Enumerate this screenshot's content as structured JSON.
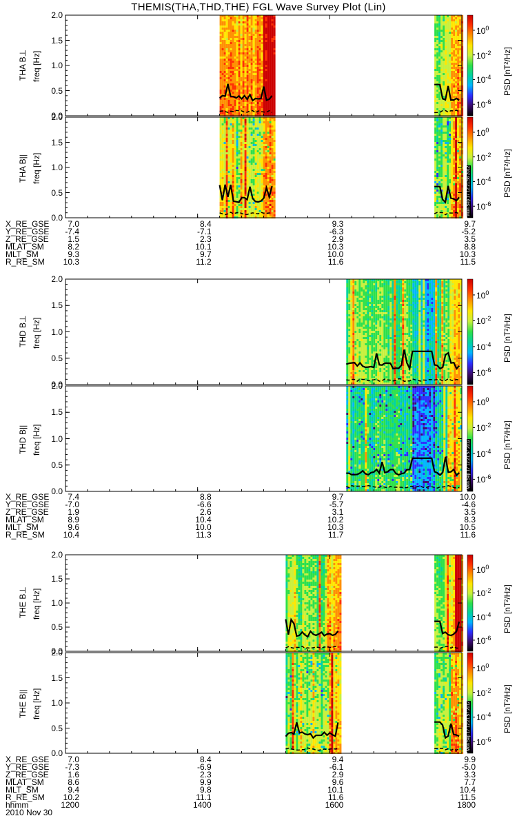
{
  "title": "THEMIS(THA,THD,THE) FGL Wave Survey Plot (Lin)",
  "freq_axis_label": "freq [Hz]",
  "freq_ticks": [
    "0.0",
    "0.5",
    "1.0",
    "1.5",
    "2.0"
  ],
  "colorbar": {
    "label": "PSD [nT²/Hz]",
    "ticks": [
      {
        "mant": "10",
        "exp": "0"
      },
      {
        "mant": "10",
        "exp": "-2"
      },
      {
        "mant": "10",
        "exp": "-4"
      },
      {
        "mant": "10",
        "exp": "-6"
      }
    ],
    "colors": [
      "#000000",
      "#3b0a6e",
      "#2c2cff",
      "#00b4ff",
      "#00d2a0",
      "#2ee04a",
      "#c8f03c",
      "#ffe600",
      "#ff9000",
      "#ff3000",
      "#cc0000"
    ]
  },
  "stamp": "Mon Sep 17 12:21:56 2012",
  "stamp2": "Mon Sep 17 12:21:57 2012",
  "time_labels": [
    "1200",
    "1400",
    "1600",
    "1800"
  ],
  "footer": {
    "hhmm": "hhmm",
    "date": "2010 Nov 30"
  },
  "chart_data": [
    {
      "type": "heatmap",
      "probe": "THA",
      "ylabel": "THA B⊥",
      "ylim": [
        0,
        2.0
      ],
      "xrange": [
        "1200",
        "1800"
      ],
      "data_intervals": [
        [
          "1420",
          "1510"
        ],
        [
          "1735",
          "1800"
        ]
      ]
    },
    {
      "type": "heatmap",
      "probe": "THA",
      "ylabel": "THA B||",
      "ylim": [
        0,
        2.0
      ],
      "xrange": [
        "1200",
        "1800"
      ],
      "data_intervals": [
        [
          "1420",
          "1510"
        ],
        [
          "1735",
          "1800"
        ]
      ]
    },
    {
      "type": "heatmap",
      "probe": "THD",
      "ylabel": "THD B⊥",
      "ylim": [
        0,
        2.0
      ],
      "xrange": [
        "1200",
        "1800"
      ],
      "data_intervals": [
        [
          "1615",
          "1800"
        ]
      ]
    },
    {
      "type": "heatmap",
      "probe": "THD",
      "ylabel": "THD B||",
      "ylim": [
        0,
        2.0
      ],
      "xrange": [
        "1200",
        "1800"
      ],
      "data_intervals": [
        [
          "1615",
          "1800"
        ]
      ]
    },
    {
      "type": "heatmap",
      "probe": "THE",
      "ylabel": "THE B⊥",
      "ylim": [
        0,
        2.0
      ],
      "xrange": [
        "1200",
        "1800"
      ],
      "data_intervals": [
        [
          "1520",
          "1610"
        ],
        [
          "1735",
          "1800"
        ]
      ]
    },
    {
      "type": "heatmap",
      "probe": "THE",
      "ylabel": "THE B||",
      "ylim": [
        0,
        2.0
      ],
      "xrange": [
        "1200",
        "1800"
      ],
      "data_intervals": [
        [
          "1520",
          "1610"
        ],
        [
          "1735",
          "1800"
        ]
      ]
    }
  ],
  "ephemeris": [
    {
      "rows": [
        {
          "label": "X_RE_GSE",
          "values": [
            "7.0",
            "8.4",
            "9.3",
            "9.7"
          ]
        },
        {
          "label": "Y_RE_GSE",
          "values": [
            "-7.4",
            "-7.1",
            "-6.3",
            "-5.2"
          ]
        },
        {
          "label": "Z_RE_GSE",
          "values": [
            "1.5",
            "2.3",
            "2.9",
            "3.5"
          ]
        },
        {
          "label": "MLAT_SM",
          "values": [
            "8.2",
            "10.1",
            "10.3",
            "8.8"
          ]
        },
        {
          "label": "MLT_SM",
          "values": [
            "9.3",
            "9.7",
            "10.0",
            "10.3"
          ]
        },
        {
          "label": "R_RE_SM",
          "values": [
            "10.3",
            "11.2",
            "11.6",
            "11.5"
          ]
        }
      ]
    },
    {
      "rows": [
        {
          "label": "X_RE_GSE",
          "values": [
            "7.4",
            "8.8",
            "9.7",
            "10.0"
          ]
        },
        {
          "label": "Y_RE_GSE",
          "values": [
            "-7.0",
            "-6.6",
            "-5.7",
            "-4.6"
          ]
        },
        {
          "label": "Z_RE_GSE",
          "values": [
            "1.9",
            "2.6",
            "3.1",
            "3.5"
          ]
        },
        {
          "label": "MLAT_SM",
          "values": [
            "8.9",
            "10.4",
            "10.2",
            "8.3"
          ]
        },
        {
          "label": "MLT_SM",
          "values": [
            "9.6",
            "10.0",
            "10.3",
            "10.5"
          ]
        },
        {
          "label": "R_RE_SM",
          "values": [
            "10.4",
            "11.3",
            "11.7",
            "11.6"
          ]
        }
      ]
    },
    {
      "rows": [
        {
          "label": "X_RE_GSE",
          "values": [
            "7.0",
            "8.4",
            "9.4",
            "9.9"
          ]
        },
        {
          "label": "Y_RE_GSE",
          "values": [
            "-7.3",
            "-6.9",
            "-6.1",
            "-5.0"
          ]
        },
        {
          "label": "Z_RE_GSE",
          "values": [
            "1.6",
            "2.3",
            "2.9",
            "3.3"
          ]
        },
        {
          "label": "MLAT_SM",
          "values": [
            "8.6",
            "9.9",
            "9.6",
            "7.7"
          ]
        },
        {
          "label": "MLT_SM",
          "values": [
            "9.4",
            "9.8",
            "10.1",
            "10.4"
          ]
        },
        {
          "label": "R_RE_SM",
          "values": [
            "10.2",
            "11.1",
            "11.6",
            "11.5"
          ]
        }
      ]
    }
  ]
}
